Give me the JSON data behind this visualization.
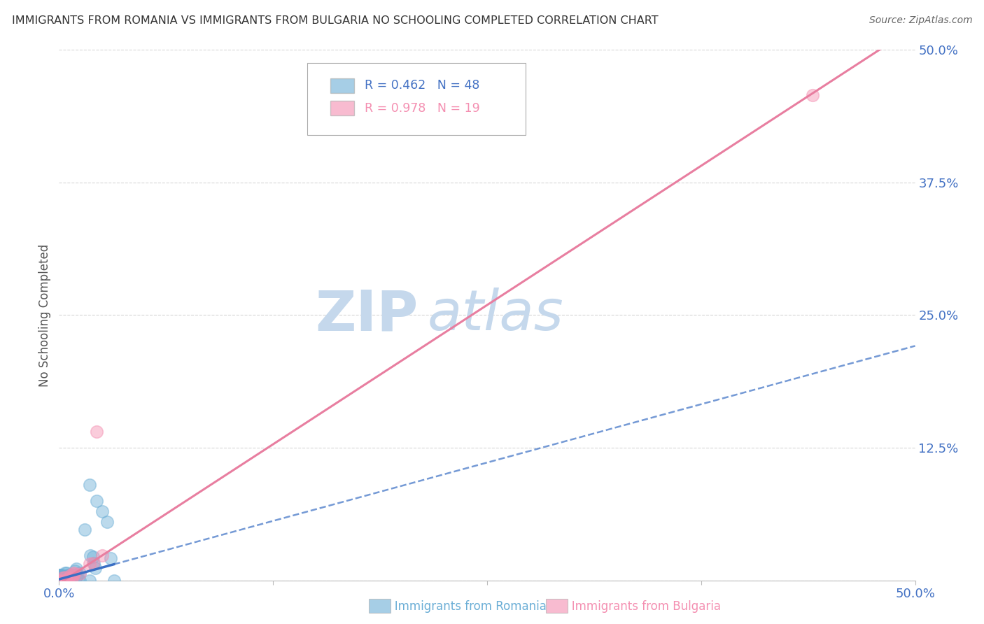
{
  "title": "IMMIGRANTS FROM ROMANIA VS IMMIGRANTS FROM BULGARIA NO SCHOOLING COMPLETED CORRELATION CHART",
  "source": "Source: ZipAtlas.com",
  "ylabel": "No Schooling Completed",
  "watermark": "ZIPatlas",
  "xlim": [
    0.0,
    0.5
  ],
  "ylim": [
    0.0,
    0.5
  ],
  "blue_color": "#6baed6",
  "pink_color": "#f48fb1",
  "blue_line_color": "#3a6fc4",
  "pink_line_color": "#e87ea0",
  "bg_color": "#ffffff",
  "grid_color": "#cccccc",
  "title_color": "#333333",
  "tick_color": "#4472c4",
  "watermark_color": "#c5d8ec",
  "r_romania": 0.462,
  "n_romania": 48,
  "r_bulgaria": 0.978,
  "n_bulgaria": 19,
  "rom_line_slope": 0.44,
  "rom_line_intercept": 0.001,
  "rom_line_solid_end": 0.032,
  "bul_line_slope": 1.05,
  "bul_line_intercept": -0.003,
  "legend_romania": "Immigrants from Romania",
  "legend_bulgaria": "Immigrants from Bulgaria"
}
